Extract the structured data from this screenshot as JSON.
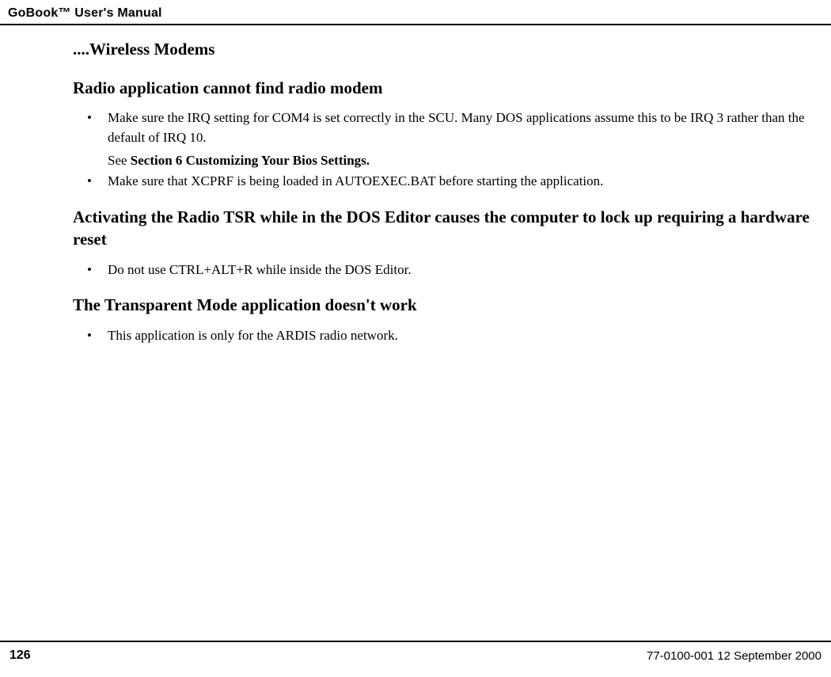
{
  "header": {
    "title": "GoBook™ User's Manual"
  },
  "content": {
    "section_title": "....Wireless Modems",
    "subsections": [
      {
        "title": "Radio application cannot find radio modem",
        "bullets": [
          {
            "text": "Make sure the IRQ setting for COM4 is set correctly in the SCU. Many DOS applications assume this to be IRQ 3 rather than the default of IRQ 10.",
            "subline_prefix": "See ",
            "subline_bold": "Section 6 Customizing Your Bios Settings."
          },
          {
            "text": "Make sure that XCPRF is being loaded in AUTOEXEC.BAT before starting the application."
          }
        ]
      },
      {
        "title": "Activating the Radio TSR while in the DOS Editor causes the computer to lock up requiring a hardware reset",
        "bullets": [
          {
            "text": "Do not use CTRL+ALT+R while inside the DOS Editor."
          }
        ]
      },
      {
        "title": "The Transparent Mode application doesn't work",
        "bullets": [
          {
            "text": "This application is only for the ARDIS radio network."
          }
        ]
      }
    ]
  },
  "footer": {
    "page_number": "126",
    "doc_info": "77-0100-001   12 September 2000"
  }
}
